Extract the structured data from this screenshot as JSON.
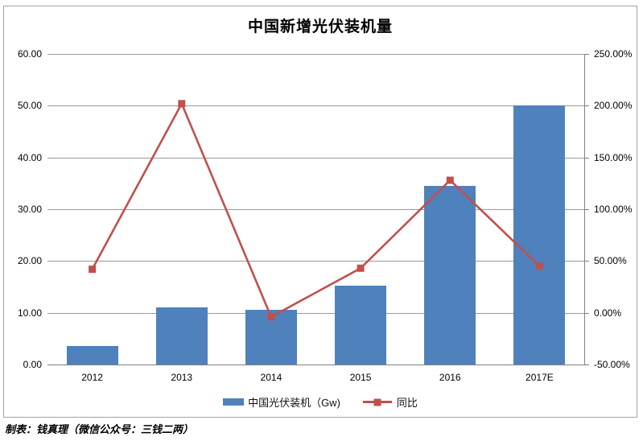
{
  "title": "中国新增光伏装机量",
  "footer": {
    "text": "制表：钱真理（微信公众号：三钱二两）"
  },
  "legend": {
    "bar_label": "中国光伏装机（Gw)",
    "line_label": "同比"
  },
  "colors": {
    "bar": "#4f81bd",
    "line": "#c0504d",
    "gridline": "#9a9a9a",
    "axis": "#808080",
    "frame_border": "#a3a3a3",
    "text": "#000000"
  },
  "chart_data": {
    "type": "bar",
    "title": "中国新增光伏装机量",
    "categories": [
      "2012",
      "2013",
      "2014",
      "2015",
      "2016",
      "2017E"
    ],
    "series": [
      {
        "name": "中国光伏装机（Gw)",
        "kind": "bar",
        "axis": "left",
        "values": [
          3.5,
          11.0,
          10.5,
          15.2,
          34.5,
          50.0
        ],
        "color": "#4f81bd"
      },
      {
        "name": "同比",
        "kind": "line",
        "axis": "right",
        "unit": "%",
        "values": [
          42,
          202,
          -4,
          43,
          128,
          45
        ],
        "color": "#c0504d",
        "marker": "square"
      }
    ],
    "left_axis": {
      "min": 0,
      "max": 60,
      "step": 10,
      "tick_labels": [
        "60.00",
        "50.00",
        "40.00",
        "30.00",
        "20.00",
        "10.00",
        "0.00"
      ]
    },
    "right_axis": {
      "min": -50,
      "max": 250,
      "step": 50,
      "tick_labels": [
        "250.00%",
        "200.00%",
        "150.00%",
        "100.00%",
        "50.00%",
        "0.00%",
        "-50.00%"
      ]
    },
    "grid": true,
    "legend_position": "bottom",
    "xlabel": "",
    "ylabel": ""
  }
}
